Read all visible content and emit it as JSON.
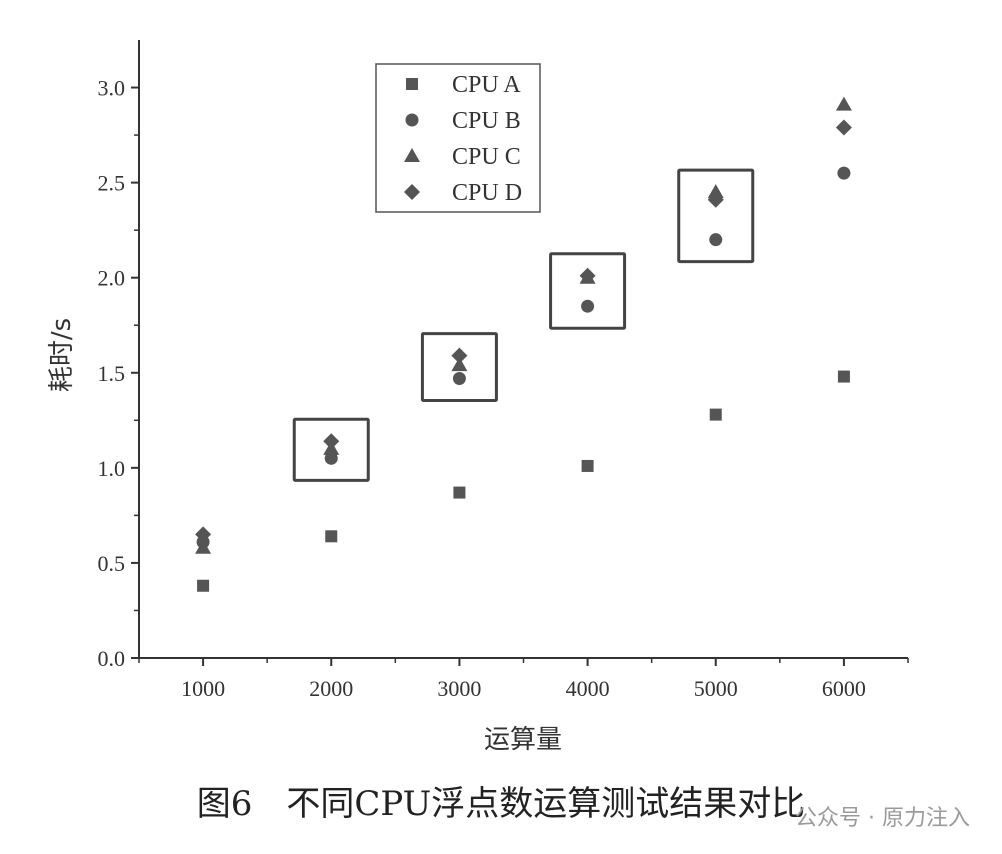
{
  "chart_data": {
    "type": "scatter",
    "xlabel": "运算量",
    "ylabel": "耗时/s",
    "x": [
      1000,
      2000,
      3000,
      4000,
      5000,
      6000
    ],
    "xticks": [
      "1000",
      "2000",
      "3000",
      "4000",
      "5000",
      "6000"
    ],
    "yticks": [
      "0.0",
      "0.5",
      "1.0",
      "1.5",
      "2.0",
      "2.5",
      "3.0"
    ],
    "xlim": [
      500,
      6500
    ],
    "ylim": [
      0,
      3.25
    ],
    "legend_position": "top-left",
    "series": [
      {
        "name": "CPU A",
        "marker": "square",
        "values": [
          0.38,
          0.64,
          0.87,
          1.01,
          1.28,
          1.48
        ]
      },
      {
        "name": "CPU B",
        "marker": "circle",
        "values": [
          0.61,
          1.05,
          1.47,
          1.85,
          2.2,
          2.55
        ]
      },
      {
        "name": "CPU C",
        "marker": "triangle",
        "values": [
          0.58,
          1.1,
          1.54,
          2.0,
          2.45,
          2.91
        ]
      },
      {
        "name": "CPU D",
        "marker": "diamond",
        "values": [
          0.65,
          1.14,
          1.59,
          2.01,
          2.41,
          2.79
        ]
      }
    ],
    "highlight_groups_x": [
      2000,
      3000,
      4000,
      5000
    ],
    "grid": false
  },
  "caption": "图6　不同CPU浮点数运算测试结果对比",
  "watermark": "公众号 · 原力注入",
  "colors": {
    "marker": "#555555",
    "axis": "#333333",
    "highlight_box": "#444444"
  }
}
